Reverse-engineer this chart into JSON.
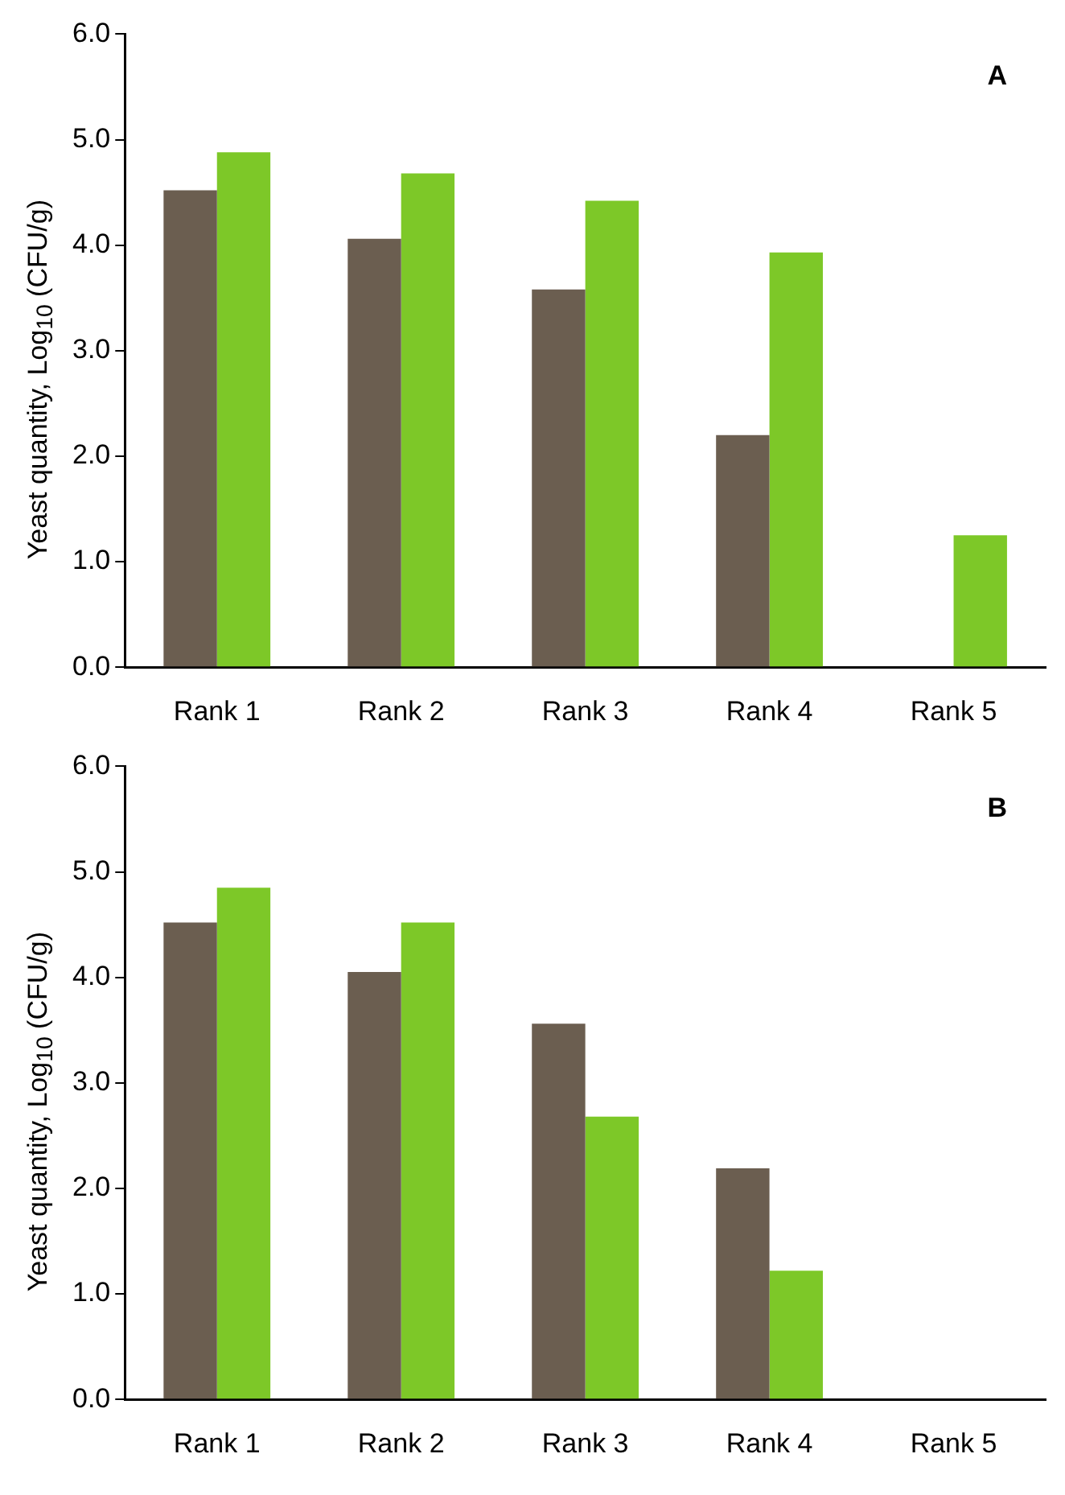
{
  "chart_data": [
    {
      "type": "bar",
      "ylabel": "Yeast quantity, Log$_{10}$ (CFU/g)",
      "annotations": [
        "A"
      ],
      "categories": [
        "Rank 1",
        "Rank 2",
        "Rank 3",
        "Rank 4",
        "Rank 5"
      ],
      "series": [
        {
          "color": "#6b5e50",
          "values": [
            4.52,
            4.06,
            3.58,
            2.2,
            0
          ]
        },
        {
          "color": "#7dc828",
          "values": [
            4.88,
            4.68,
            4.42,
            3.93,
            1.25
          ]
        }
      ],
      "ylim": [
        0,
        6
      ],
      "yticks": [
        {
          "value": 0,
          "label": "0.0"
        },
        {
          "value": 1,
          "label": "1.0"
        },
        {
          "value": 2,
          "label": "2.0"
        },
        {
          "value": 3,
          "label": "3.0"
        },
        {
          "value": 4,
          "label": "4.0"
        },
        {
          "value": 5,
          "label": "5.0"
        },
        {
          "value": 6,
          "label": "6.0"
        }
      ]
    },
    {
      "type": "bar",
      "ylabel": "Yeast quantity, Log$_{10}$ (CFU/g)",
      "annotations": [
        "B"
      ],
      "categories": [
        "Rank 1",
        "Rank 2",
        "Rank 3",
        "Rank 4",
        "Rank 5"
      ],
      "series": [
        {
          "color": "#6b5e50",
          "values": [
            4.52,
            4.05,
            3.56,
            2.19,
            0
          ]
        },
        {
          "color": "#7dc828",
          "values": [
            4.85,
            4.52,
            2.68,
            1.22,
            0
          ]
        }
      ],
      "ylim": [
        0,
        6
      ],
      "yticks": [
        {
          "value": 0,
          "label": "0.0"
        },
        {
          "value": 1,
          "label": "1.0"
        },
        {
          "value": 2,
          "label": "2.0"
        },
        {
          "value": 3,
          "label": "3.0"
        },
        {
          "value": 4,
          "label": "4.0"
        },
        {
          "value": 5,
          "label": "5.0"
        },
        {
          "value": 6,
          "label": "6.0"
        }
      ]
    }
  ]
}
